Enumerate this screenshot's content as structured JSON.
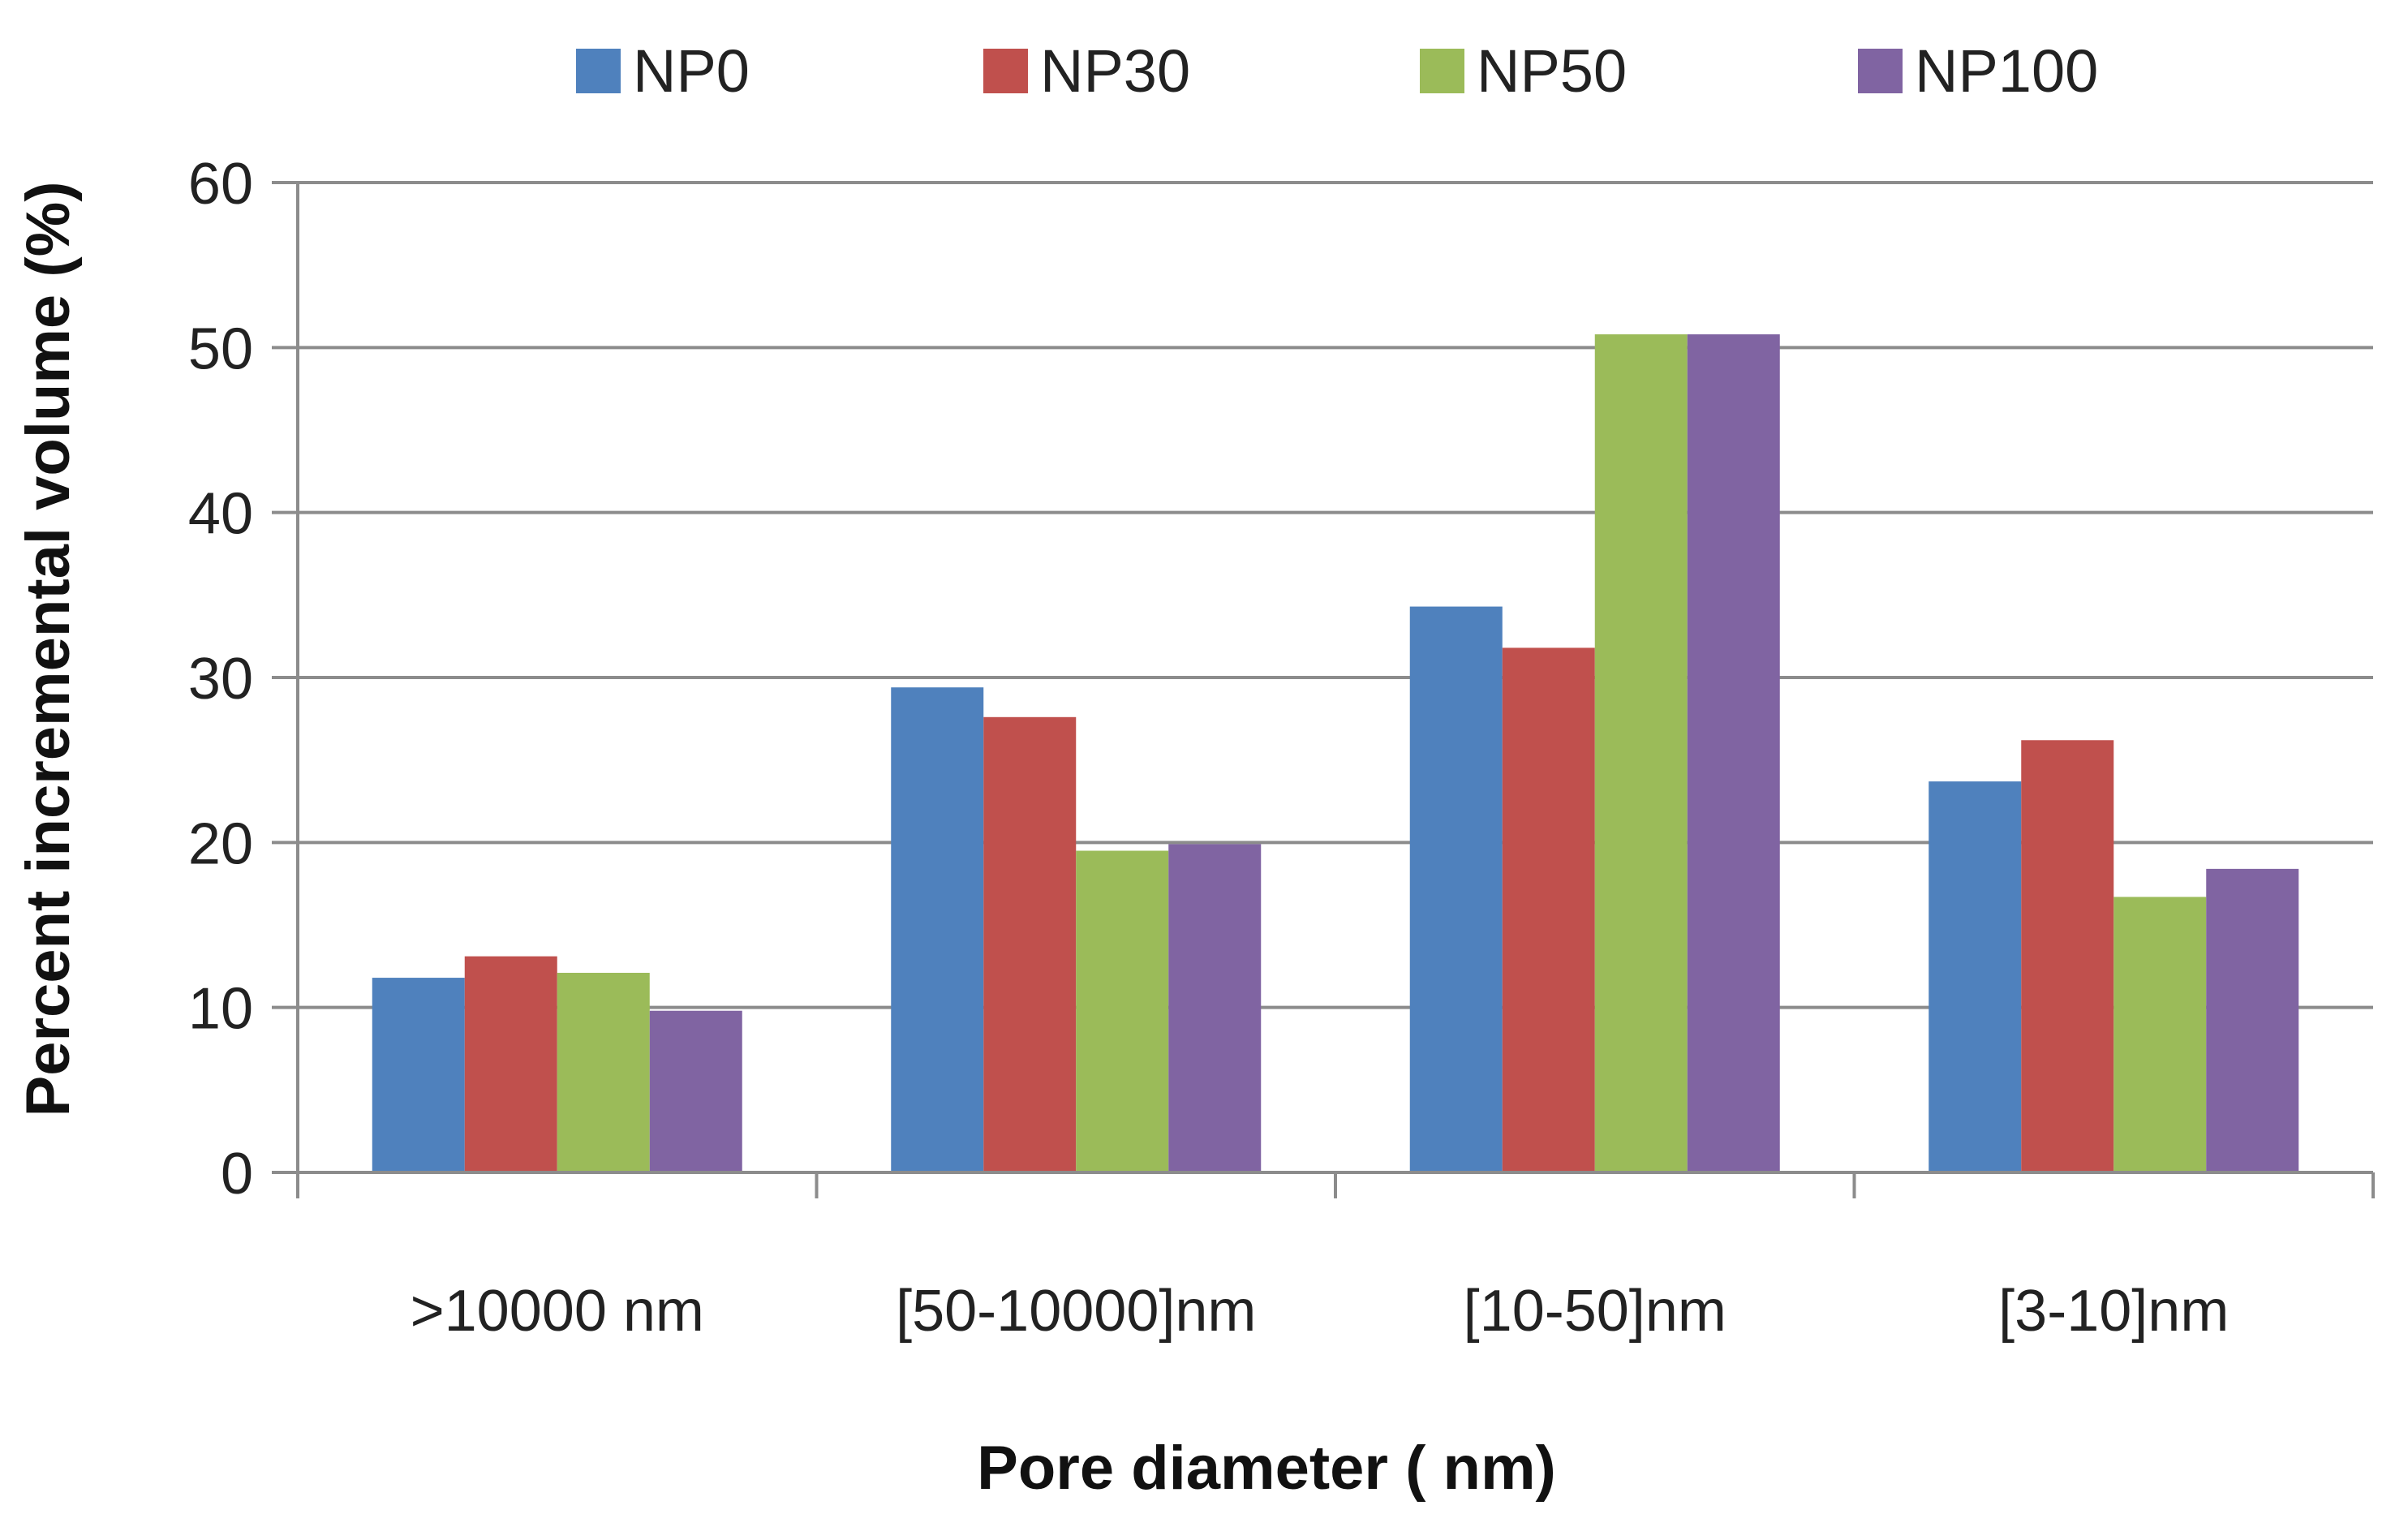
{
  "chart_data": {
    "type": "bar",
    "title": "",
    "xlabel": "Pore diameter ( nm)",
    "ylabel": "Percent incremental volume (%)",
    "ylim": [
      0,
      60
    ],
    "yticks": [
      0,
      10,
      20,
      30,
      40,
      50,
      60
    ],
    "ytick_labels": [
      "0",
      "10",
      "20",
      "30",
      "40",
      "50",
      "60"
    ],
    "grid": true,
    "legend_position": "top",
    "categories": [
      ">10000 nm",
      "[50-10000]nm",
      "[10-50]nm",
      "[3-10]nm"
    ],
    "series": [
      {
        "name": "NP0",
        "color": "#4F81BD",
        "values": [
          11.8,
          29.4,
          34.3,
          23.7
        ]
      },
      {
        "name": "NP30",
        "color": "#C0504D",
        "values": [
          13.1,
          27.6,
          31.8,
          26.2
        ]
      },
      {
        "name": "NP50",
        "color": "#9BBB59",
        "values": [
          12.1,
          19.5,
          50.8,
          16.7
        ]
      },
      {
        "name": "NP100",
        "color": "#8064A2",
        "values": [
          9.8,
          19.9,
          50.8,
          18.4
        ]
      }
    ],
    "colors": {
      "gridline": "#8C8C8C",
      "axis": "#8C8C8C",
      "text": "#222222"
    }
  }
}
